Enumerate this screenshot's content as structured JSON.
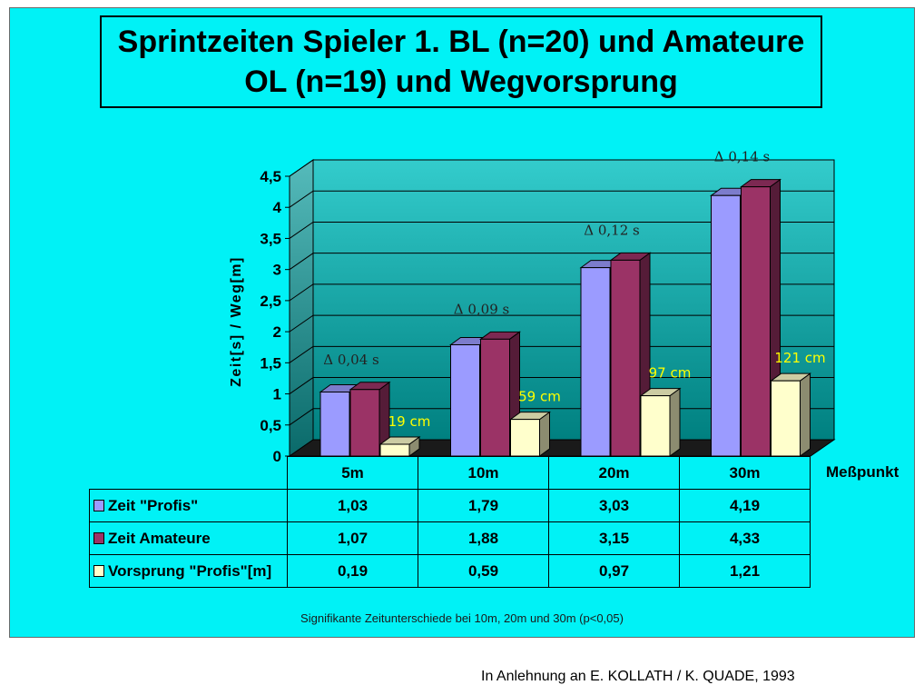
{
  "title": {
    "line1": "Sprintzeiten Spieler 1. BL (n=20) und Amateure",
    "line2": "OL (n=19) und Wegvorsprung"
  },
  "chart_data": {
    "type": "bar",
    "style": "3d-clustered-column",
    "categories": [
      "5m",
      "10m",
      "20m",
      "30m"
    ],
    "category_labels_table": [
      "5m",
      "10m",
      "20m",
      "30m"
    ],
    "series": [
      {
        "name": "Zeit \"Profis\"",
        "color": "#9b9bff",
        "values": [
          1.03,
          1.79,
          3.03,
          4.19
        ],
        "display": [
          "1,03",
          "1,79",
          "3,03",
          "4,19"
        ]
      },
      {
        "name": "Zeit Amateure",
        "color": "#9b3366",
        "values": [
          1.07,
          1.88,
          3.15,
          4.33
        ],
        "display": [
          "1,07",
          "1,88",
          "3,15",
          "4,33"
        ]
      },
      {
        "name": "Vorsprung \"Profis\"[m]",
        "color": "#ffffcc",
        "values": [
          0.19,
          0.59,
          0.97,
          1.21
        ],
        "display": [
          "0,19",
          "0,59",
          "0,97",
          "1,21"
        ]
      }
    ],
    "xlabel": "Meßpunkt",
    "ylabel": "Zeit[s] / Weg[m]",
    "ylim": [
      0,
      4.5
    ],
    "yticks": [
      0,
      0.5,
      1,
      1.5,
      2,
      2.5,
      3,
      3.5,
      4,
      4.5
    ],
    "ytick_labels": [
      "0",
      "0,5",
      "1",
      "1,5",
      "2",
      "2,5",
      "3",
      "3,5",
      "4",
      "4,5"
    ],
    "grid": true,
    "legend": "data-table",
    "delta_labels": [
      "Δ 0,04 s",
      "Δ 0,09 s",
      "Δ 0,12 s",
      "Δ 0,14 s"
    ],
    "lead_labels": [
      "19 cm",
      "59 cm",
      "97 cm",
      "121 cm"
    ]
  },
  "footnote": "Signifikante Zeitunterschiede bei 10m, 20m und 30m (p<0,05)",
  "source": "In Anlehnung an E. KOLLATH / K. QUADE, 1993",
  "colors": {
    "background": "#00f2f6",
    "wall_top": "#33cccc",
    "wall_bottom": "#008080",
    "floor": "#1a1a1a",
    "delta_text": "#222222",
    "lead_text": "#ffff00"
  }
}
